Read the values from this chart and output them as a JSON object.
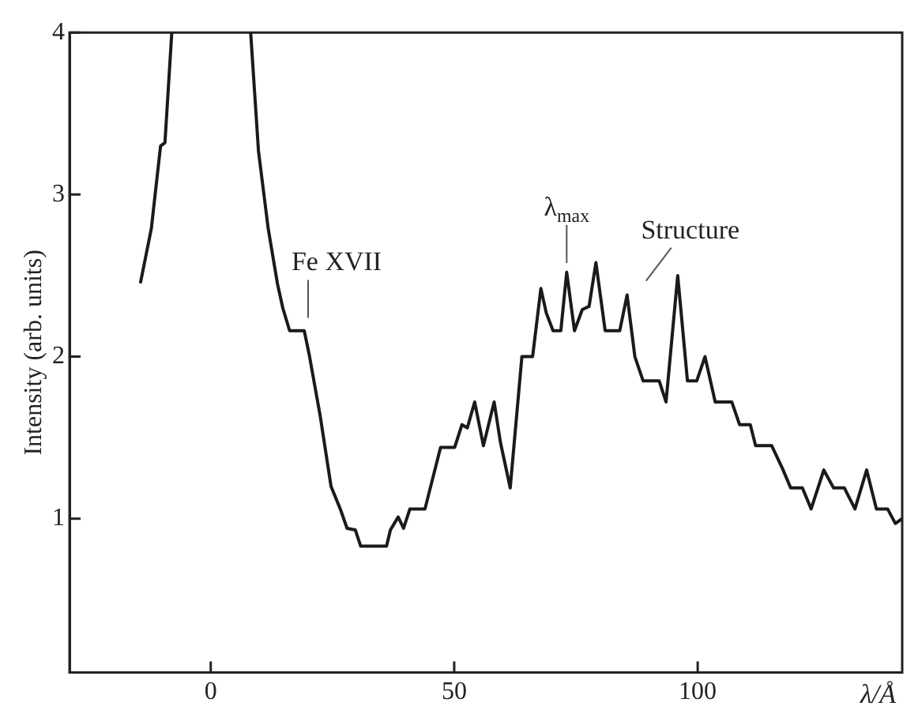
{
  "chart_data": {
    "type": "line",
    "ylabel": "Intensity (arb. units)",
    "xlabel": "λ/Å",
    "xlim": [
      -29,
      142
    ],
    "xticks": [
      0,
      50,
      100
    ],
    "ylim": [
      0.05,
      4
    ],
    "yticks": [
      1,
      2,
      3,
      4
    ],
    "grid": false,
    "legend": false,
    "marker": "none",
    "line_style": "solid",
    "series": [
      {
        "color": "#1a1a1a",
        "x": [
          -14.4,
          -12.2,
          -10.3,
          -9.4,
          -8.0,
          0,
          8.2,
          9.8,
          11.8,
          13.7,
          14.8,
          16.2,
          19.2,
          20.3,
          22.5,
          24.7,
          26.6,
          28.0,
          29.7,
          30.8,
          36.1,
          36.9,
          38.5,
          39.6,
          40.9,
          44.0,
          47.2,
          50.1,
          51.6,
          52.7,
          54.2,
          56.0,
          58.2,
          59.5,
          61.5,
          63.9,
          66.1,
          67.8,
          68.9,
          70.3,
          71.9,
          73.1,
          74.7,
          76.3,
          77.7,
          79.1,
          81.0,
          84.0,
          85.5,
          87.1,
          88.8,
          92.1,
          93.5,
          95.9,
          97.9,
          99.8,
          101.5,
          103.6,
          107.0,
          108.6,
          110.8,
          111.9,
          115.2,
          117.4,
          119.1,
          121.5,
          123.3,
          125.9,
          127.9,
          130.1,
          132.3,
          134.7,
          136.7,
          139.0,
          140.6,
          142.0
        ],
        "values": [
          2.46,
          2.79,
          3.3,
          3.32,
          4.0,
          null,
          4.0,
          3.27,
          2.79,
          2.45,
          2.3,
          2.16,
          2.16,
          2.0,
          1.63,
          1.2,
          1.06,
          0.94,
          0.93,
          0.83,
          0.83,
          0.93,
          1.01,
          0.94,
          1.06,
          1.06,
          1.44,
          1.44,
          1.58,
          1.56,
          1.72,
          1.45,
          1.72,
          1.47,
          1.19,
          2.0,
          2.0,
          2.42,
          2.27,
          2.16,
          2.16,
          2.52,
          2.16,
          2.29,
          2.31,
          2.58,
          2.16,
          2.16,
          2.38,
          2.0,
          1.85,
          1.85,
          1.72,
          2.5,
          1.85,
          1.85,
          2.0,
          1.72,
          1.72,
          1.58,
          1.58,
          1.45,
          1.45,
          1.31,
          1.19,
          1.19,
          1.06,
          1.3,
          1.19,
          1.19,
          1.06,
          1.3,
          1.06,
          1.06,
          0.97,
          1.0
        ]
      }
    ],
    "annotations": [
      {
        "text": "Fe XVII",
        "x": 20,
        "y": 2.2
      },
      {
        "text": "λ$_{max}$",
        "x": 73.1,
        "y": 2.52
      },
      {
        "text": "Structure",
        "x": 85.5,
        "y": 2.38
      }
    ]
  }
}
